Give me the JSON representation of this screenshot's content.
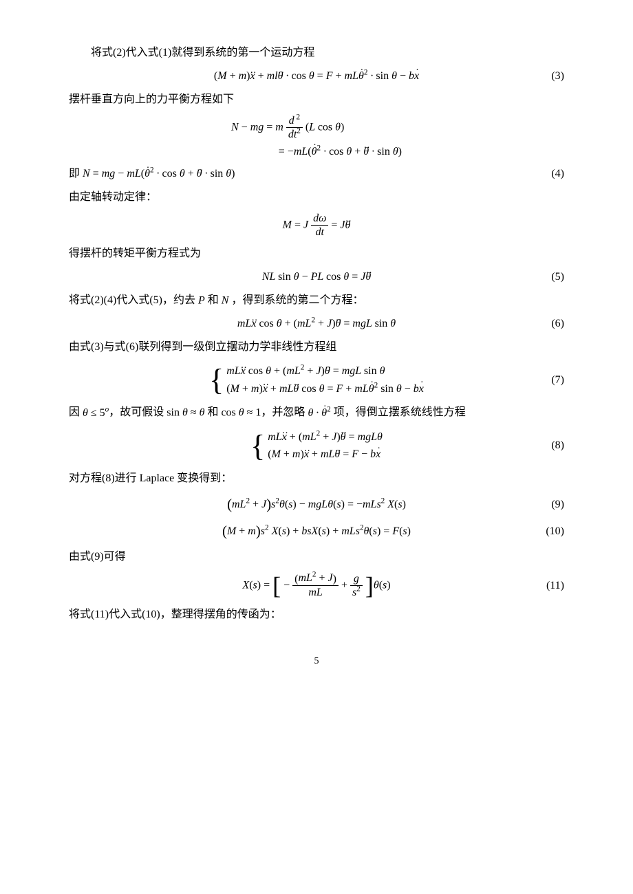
{
  "colors": {
    "text": "#000000",
    "bg": "#ffffff"
  },
  "typography": {
    "body_fontsize": 16,
    "math_family": "Times New Roman",
    "cjk_family": "SimSun"
  },
  "pageNumber": "5",
  "lines": {
    "p1": "将式(2)代入式(1)就得到系统的第一个运动方程",
    "p2": "摆杆垂直方向上的力平衡方程如下",
    "p3_prefix": "即 ",
    "p4": "由定轴转动定律：",
    "p5": "得摆杆的转矩平衡方程式为",
    "p6": "将式(2)(4)代入式(5)，约去 P  和  N ，得到系统的第二个方程：",
    "p7": "由式(3)与式(6)联列得到一级倒立摆动力学非线性方程组",
    "p8_a": "因",
    "p8_b": "，故可假设",
    "p8_c": "和",
    "p8_d": "，并忽略",
    "p8_e": "项，得倒立摆系统线性方程",
    "p9": "对方程(8)进行 Laplace 变换得到：",
    "p10": "由式(9)可得",
    "p11": "将式(11)代入式(10)，整理得摆角的传函为："
  },
  "eqnums": {
    "e3": "(3)",
    "e4": "(4)",
    "e5": "(5)",
    "e6": "(6)",
    "e7": "(7)",
    "e8": "(8)",
    "e9": "(9)",
    "e10": "(10)",
    "e11": "(11)"
  },
  "math": {
    "theta_le_5": "θ ≤ 5°",
    "sin_approx": "sin θ ≈ θ",
    "cos_approx": "cos θ ≈ 1",
    "theta_thetadot2": "θ · θ̇²",
    "Pvar": "P",
    "Nvar": "N"
  }
}
